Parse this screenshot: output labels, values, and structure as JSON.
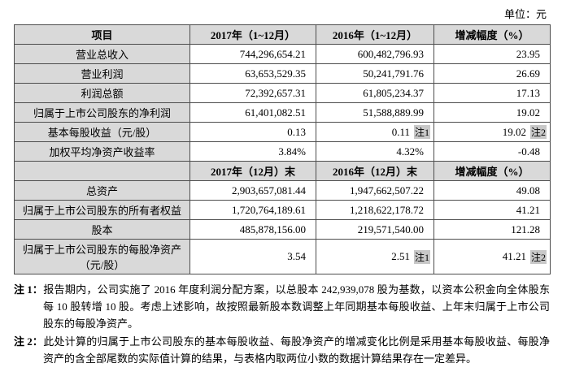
{
  "unit_label": "单位：元",
  "income_table": {
    "headers": [
      "项目",
      "2017年（1~12月）",
      "2016年（1~12月）",
      "增减幅度（%）"
    ],
    "rows": [
      {
        "item": "营业总收入",
        "y2017": "744,296,654.21",
        "y2016": "600,482,796.93",
        "change": "23.95"
      },
      {
        "item": "营业利润",
        "y2017": "63,653,529.35",
        "y2016": "50,241,791.76",
        "change": "26.69"
      },
      {
        "item": "利润总额",
        "y2017": "72,392,657.31",
        "y2016": "61,805,234.37",
        "change": "17.13"
      },
      {
        "item": "归属于上市公司股东的净利润",
        "y2017": "61,401,082.51",
        "y2016": "51,588,889.99",
        "change": "19.02"
      },
      {
        "item": "基本每股收益（元/股）",
        "y2017": "0.13",
        "y2016": "0.11",
        "y2016_note": "注1",
        "change": "19.02",
        "change_note": "注2"
      },
      {
        "item": "加权平均净资产收益率",
        "y2017": "3.84%",
        "y2016": "4.32%",
        "change": "-0.48"
      }
    ]
  },
  "balance_table": {
    "headers": [
      "",
      "2017年（12月）末",
      "2016年（12月）末",
      "增减幅度（%）"
    ],
    "rows": [
      {
        "item": "总资产",
        "y2017": "2,903,657,081.44",
        "y2016": "1,947,662,507.22",
        "change": "49.08"
      },
      {
        "item": "归属于上市公司股东的所有者权益",
        "y2017": "1,720,764,189.61",
        "y2016": "1,218,622,178.72",
        "change": "41.21"
      },
      {
        "item": "股本",
        "y2017": "485,878,156.00",
        "y2016": "219,571,540.00",
        "change": "121.28"
      },
      {
        "item": "归属于上市公司股东的每股净资产（元/股）",
        "y2017": "3.54",
        "y2016": "2.51",
        "y2016_note": "注1",
        "change": "41.21",
        "change_note": "注2"
      }
    ]
  },
  "notes": [
    {
      "label": "注 1：",
      "text": "报告期内，公司实施了 2016 年度利润分配方案，以总股本 242,939,078 股为基数，以资本公积金向全体股东每 10 股转增 10 股。考虑上述影响，故按照最新股本数调整上年同期基本每股收益、上年末归属于上市公司股东的每股净资产。"
    },
    {
      "label": "注 2：",
      "text": "此处计算的归属于上市公司股东的基本每股收益、每股净资产的增减变化比例是采用基本每股收益、每股净资产的含全部尾数的实际值计算的结果，与表格内取两位小数的数据计算结果存在一定差异。"
    }
  ]
}
